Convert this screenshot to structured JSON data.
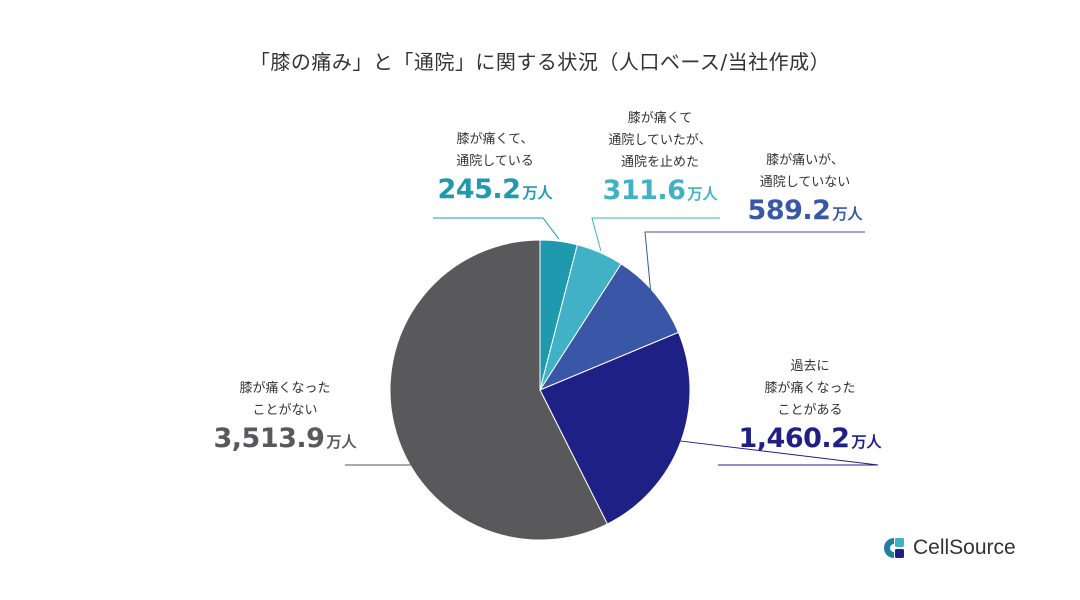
{
  "chart_data": {
    "type": "pie",
    "title": "「膝の痛み」と「通院」に関する状況（人口ベース/当社作成）",
    "unit": "万人",
    "slices": [
      {
        "label_lines": [
          "膝が痛くて、",
          "通院している"
        ],
        "value": 245.2,
        "value_text": "245.2",
        "color": "#1e99ad"
      },
      {
        "label_lines": [
          "膝が痛くて",
          "通院していたが、",
          "通院を止めた"
        ],
        "value": 311.6,
        "value_text": "311.6",
        "color": "#41b2c6"
      },
      {
        "label_lines": [
          "膝が痛いが、",
          "通院していない"
        ],
        "value": 589.2,
        "value_text": "589.2",
        "color": "#3a56a7"
      },
      {
        "label_lines": [
          "過去に",
          "膝が痛くなった",
          "ことがある"
        ],
        "value": 1460.2,
        "value_text": "1,460.2",
        "color": "#1f2085"
      },
      {
        "label_lines": [
          "膝が痛くなった",
          "ことがない"
        ],
        "value": 3513.9,
        "value_text": "3,513.9",
        "color": "#59585a"
      }
    ]
  },
  "brand": {
    "name": "CellSource",
    "icon": "cellsource-logo-icon",
    "color": "#1e7fa0"
  }
}
